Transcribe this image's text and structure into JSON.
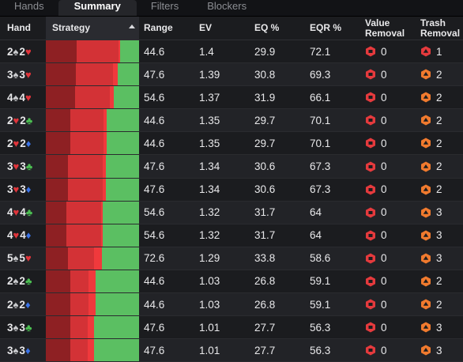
{
  "tabs": [
    "Hands",
    "Summary",
    "Filters",
    "Blockers"
  ],
  "headers": {
    "hand": "Hand",
    "strategy": "Strategy",
    "range": "Range",
    "ev": "EV",
    "eq": "EQ %",
    "eqr": "EQR %",
    "value_removal_1": "Value",
    "value_removal_2": "Removal",
    "trash_removal_1": "Trash",
    "trash_removal_2": "Removal"
  },
  "colors": {
    "dark_red": "#8e2023",
    "red": "#d33236",
    "bright_red": "#f0393c",
    "green": "#5bbf62"
  },
  "rows": [
    {
      "r1": "2",
      "s1": "♠",
      "r2": "2",
      "s2": "♥",
      "strategy": [
        0.33,
        0.45,
        0.02,
        0.2
      ],
      "range": "44.6",
      "ev": "1.4",
      "eq": "29.9",
      "eqr": "72.1",
      "vr": "0",
      "tr": "1",
      "tr_icon": "red"
    },
    {
      "r1": "3",
      "s1": "♠",
      "r2": "3",
      "s2": "♥",
      "strategy": [
        0.32,
        0.4,
        0.05,
        0.23
      ],
      "range": "47.6",
      "ev": "1.39",
      "eq": "30.8",
      "eqr": "69.3",
      "vr": "0",
      "tr": "2",
      "tr_icon": "orange"
    },
    {
      "r1": "4",
      "s1": "♠",
      "r2": "4",
      "s2": "♥",
      "strategy": [
        0.31,
        0.38,
        0.04,
        0.27
      ],
      "range": "54.6",
      "ev": "1.37",
      "eq": "31.9",
      "eqr": "66.1",
      "vr": "0",
      "tr": "2",
      "tr_icon": "orange"
    },
    {
      "r1": "2",
      "s1": "♥",
      "r2": "2",
      "s2": "♣",
      "strategy": [
        0.26,
        0.36,
        0.03,
        0.35
      ],
      "range": "44.6",
      "ev": "1.35",
      "eq": "29.7",
      "eqr": "70.1",
      "vr": "0",
      "tr": "2",
      "tr_icon": "orange"
    },
    {
      "r1": "2",
      "s1": "♥",
      "r2": "2",
      "s2": "♦",
      "strategy": [
        0.26,
        0.36,
        0.03,
        0.35
      ],
      "range": "44.6",
      "ev": "1.35",
      "eq": "29.7",
      "eqr": "70.1",
      "vr": "0",
      "tr": "2",
      "tr_icon": "orange"
    },
    {
      "r1": "3",
      "s1": "♥",
      "r2": "3",
      "s2": "♣",
      "strategy": [
        0.24,
        0.37,
        0.03,
        0.36
      ],
      "range": "47.6",
      "ev": "1.34",
      "eq": "30.6",
      "eqr": "67.3",
      "vr": "0",
      "tr": "2",
      "tr_icon": "orange"
    },
    {
      "r1": "3",
      "s1": "♥",
      "r2": "3",
      "s2": "♦",
      "strategy": [
        0.24,
        0.37,
        0.03,
        0.36
      ],
      "range": "47.6",
      "ev": "1.34",
      "eq": "30.6",
      "eqr": "67.3",
      "vr": "0",
      "tr": "2",
      "tr_icon": "orange"
    },
    {
      "r1": "4",
      "s1": "♥",
      "r2": "4",
      "s2": "♣",
      "strategy": [
        0.22,
        0.37,
        0.02,
        0.39
      ],
      "range": "54.6",
      "ev": "1.32",
      "eq": "31.7",
      "eqr": "64",
      "vr": "0",
      "tr": "3",
      "tr_icon": "orange"
    },
    {
      "r1": "4",
      "s1": "♥",
      "r2": "4",
      "s2": "♦",
      "strategy": [
        0.22,
        0.37,
        0.02,
        0.39
      ],
      "range": "54.6",
      "ev": "1.32",
      "eq": "31.7",
      "eqr": "64",
      "vr": "0",
      "tr": "3",
      "tr_icon": "orange"
    },
    {
      "r1": "5",
      "s1": "♠",
      "r2": "5",
      "s2": "♥",
      "strategy": [
        0.24,
        0.28,
        0.08,
        0.4
      ],
      "range": "72.6",
      "ev": "1.29",
      "eq": "33.8",
      "eqr": "58.6",
      "vr": "0",
      "tr": "3",
      "tr_icon": "orange"
    },
    {
      "r1": "2",
      "s1": "♠",
      "r2": "2",
      "s2": "♣",
      "strategy": [
        0.26,
        0.2,
        0.07,
        0.47
      ],
      "range": "44.6",
      "ev": "1.03",
      "eq": "26.8",
      "eqr": "59.1",
      "vr": "0",
      "tr": "2",
      "tr_icon": "orange"
    },
    {
      "r1": "2",
      "s1": "♠",
      "r2": "2",
      "s2": "♦",
      "strategy": [
        0.26,
        0.2,
        0.07,
        0.47
      ],
      "range": "44.6",
      "ev": "1.03",
      "eq": "26.8",
      "eqr": "59.1",
      "vr": "0",
      "tr": "2",
      "tr_icon": "orange"
    },
    {
      "r1": "3",
      "s1": "♠",
      "r2": "3",
      "s2": "♣",
      "strategy": [
        0.26,
        0.19,
        0.07,
        0.48
      ],
      "range": "47.6",
      "ev": "1.01",
      "eq": "27.7",
      "eqr": "56.3",
      "vr": "0",
      "tr": "3",
      "tr_icon": "orange"
    },
    {
      "r1": "3",
      "s1": "♠",
      "r2": "3",
      "s2": "♦",
      "strategy": [
        0.26,
        0.19,
        0.07,
        0.48
      ],
      "range": "47.6",
      "ev": "1.01",
      "eq": "27.7",
      "eqr": "56.3",
      "vr": "0",
      "tr": "3",
      "tr_icon": "orange"
    }
  ]
}
